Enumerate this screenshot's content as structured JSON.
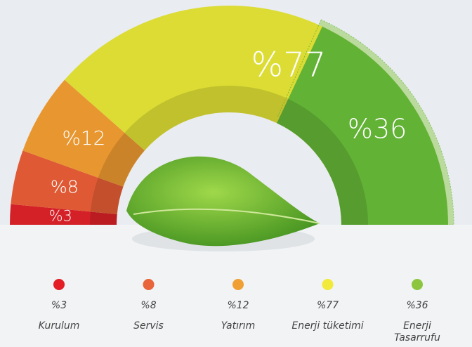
{
  "chart_data": {
    "type": "gauge",
    "categories": [
      "Kurulum",
      "Servis",
      "Yatırım",
      "Enerji tüketimi",
      "Enerji Tasarrufu"
    ],
    "values": [
      3,
      8,
      12,
      77,
      36
    ],
    "value_labels": [
      "%3",
      "%8",
      "%12",
      "%77",
      "%36"
    ],
    "colors": [
      "#d42027",
      "#df5a34",
      "#e8962f",
      "#dcdc34",
      "#62b236"
    ],
    "legend_colors": [
      "#e31e24",
      "#e8643a",
      "#f0a032",
      "#f1ea3a",
      "#8cc63f"
    ]
  }
}
